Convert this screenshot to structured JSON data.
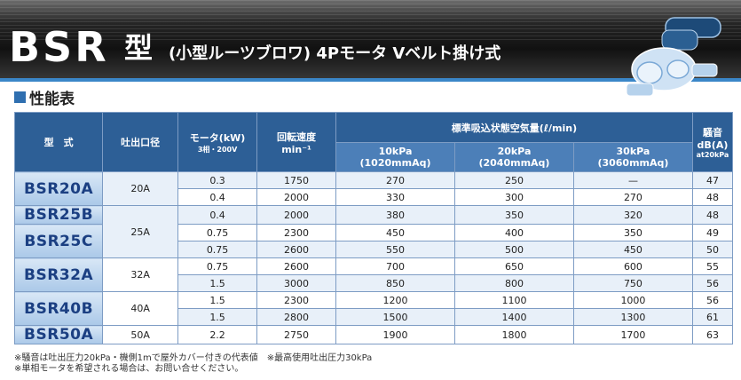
{
  "header": {
    "logo": "BSR",
    "katagata": "型",
    "subtitle": "(小型ルーツブロワ) 4Pモータ Vベルト掛け式"
  },
  "section_title": "性能表",
  "table": {
    "headers": {
      "model": "型　式",
      "outlet": "吐出口径",
      "motor": "モータ(kW)",
      "motor_sub": "3相・200V",
      "speed": "回転速度",
      "speed_unit": "min⁻¹",
      "airflow": "標準吸込状態空気量(ℓ/min)",
      "p10": "10kPa",
      "p10_sub": "(1020mmAq)",
      "p20": "20kPa",
      "p20_sub": "(2040mmAq)",
      "p30": "30kPa",
      "p30_sub": "(3060mmAq)",
      "noise": "騒音",
      "noise_unit": "dB(A)",
      "noise_cond": "at20kPa"
    },
    "models": [
      "BSR20A",
      "BSR25B",
      "BSR25C",
      "BSR32A",
      "BSR40B",
      "BSR50A"
    ],
    "outlets": [
      "20A",
      "25A",
      "32A",
      "40A",
      "50A"
    ],
    "rows": [
      {
        "motor": "0.3",
        "speed": "1750",
        "q10": "270",
        "q20": "250",
        "q30": "—",
        "db": "47"
      },
      {
        "motor": "0.4",
        "speed": "2000",
        "q10": "330",
        "q20": "300",
        "q30": "270",
        "db": "48"
      },
      {
        "motor": "0.4",
        "speed": "2000",
        "q10": "380",
        "q20": "350",
        "q30": "320",
        "db": "48"
      },
      {
        "motor": "0.75",
        "speed": "2300",
        "q10": "450",
        "q20": "400",
        "q30": "350",
        "db": "49"
      },
      {
        "motor": "0.75",
        "speed": "2600",
        "q10": "550",
        "q20": "500",
        "q30": "450",
        "db": "50"
      },
      {
        "motor": "0.75",
        "speed": "2600",
        "q10": "700",
        "q20": "650",
        "q30": "600",
        "db": "55"
      },
      {
        "motor": "1.5",
        "speed": "3000",
        "q10": "850",
        "q20": "800",
        "q30": "750",
        "db": "56"
      },
      {
        "motor": "1.5",
        "speed": "2300",
        "q10": "1200",
        "q20": "1100",
        "q30": "1000",
        "db": "56"
      },
      {
        "motor": "1.5",
        "speed": "2800",
        "q10": "1500",
        "q20": "1400",
        "q30": "1300",
        "db": "61"
      },
      {
        "motor": "2.2",
        "speed": "2750",
        "q10": "1900",
        "q20": "1800",
        "q30": "1700",
        "db": "63"
      }
    ]
  },
  "notes": {
    "line1": "※騒音は吐出圧力20kPa・機側1mで屋外カバー付きの代表値　※最高使用吐出圧力30kPa",
    "line2": "※単相モータを希望される場合は、お問い合せください。"
  },
  "colors": {
    "header_blue": "#2d5f96",
    "model_text": "#1b3f82",
    "accent_line": "#3a86c8"
  }
}
